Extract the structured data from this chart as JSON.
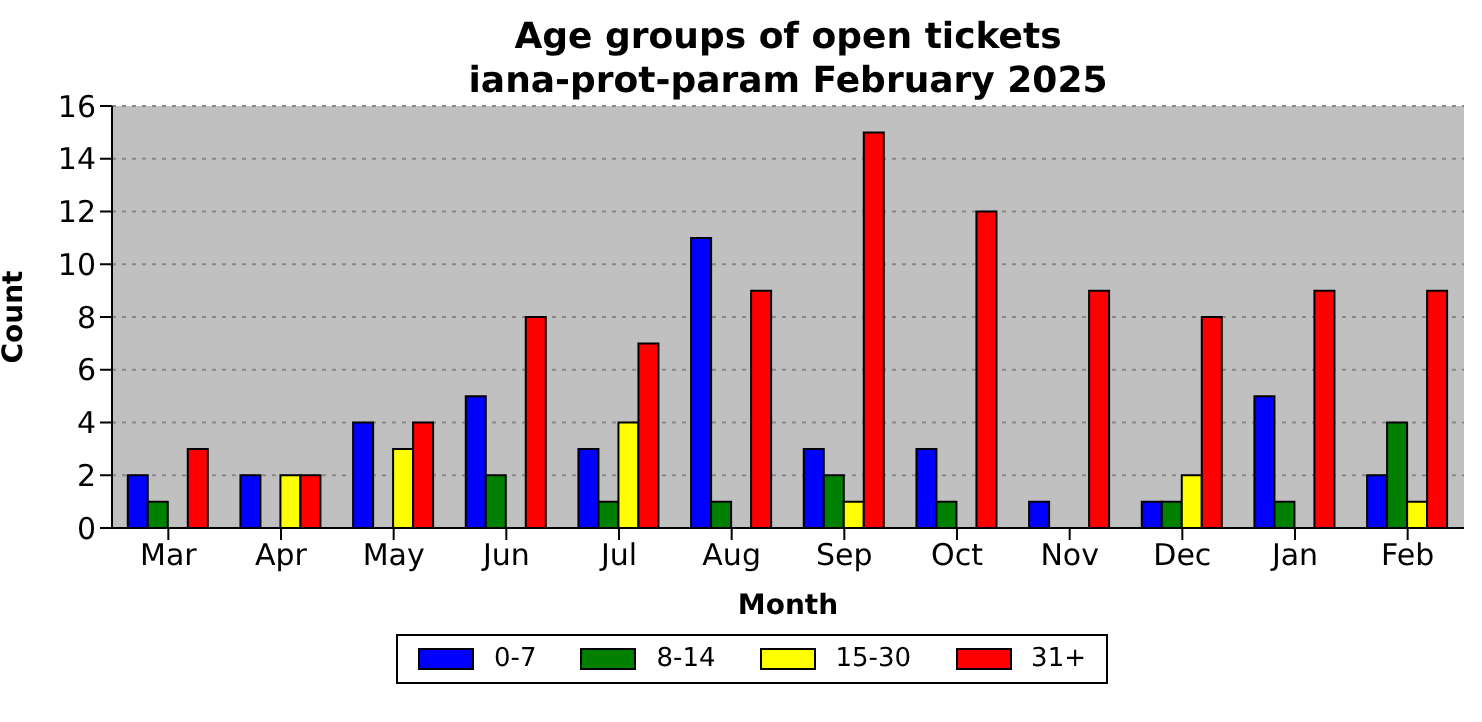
{
  "chart_data": {
    "type": "bar",
    "title": "Age groups of open tickets\niana-prot-param February 2025",
    "xlabel": "Month",
    "ylabel": "Count",
    "categories": [
      "Mar",
      "Apr",
      "May",
      "Jun",
      "Jul",
      "Aug",
      "Sep",
      "Oct",
      "Nov",
      "Dec",
      "Jan",
      "Feb"
    ],
    "series": [
      {
        "name": "0-7",
        "color": "#0000ff",
        "values": [
          2,
          2,
          4,
          5,
          3,
          11,
          3,
          3,
          1,
          1,
          5,
          2
        ]
      },
      {
        "name": "8-14",
        "color": "#008000",
        "values": [
          1,
          0,
          0,
          2,
          1,
          1,
          2,
          1,
          0,
          1,
          1,
          4
        ]
      },
      {
        "name": "15-30",
        "color": "#ffff00",
        "values": [
          0,
          2,
          3,
          0,
          4,
          0,
          1,
          0,
          0,
          2,
          0,
          1
        ]
      },
      {
        "name": "31+",
        "color": "#ff0000",
        "values": [
          3,
          2,
          4,
          8,
          7,
          9,
          15,
          12,
          9,
          8,
          9,
          9
        ]
      }
    ],
    "ylim": [
      0,
      16
    ],
    "yticks": [
      0,
      2,
      4,
      6,
      8,
      10,
      12,
      14,
      16
    ],
    "grid": "y",
    "legend": "bottom"
  }
}
